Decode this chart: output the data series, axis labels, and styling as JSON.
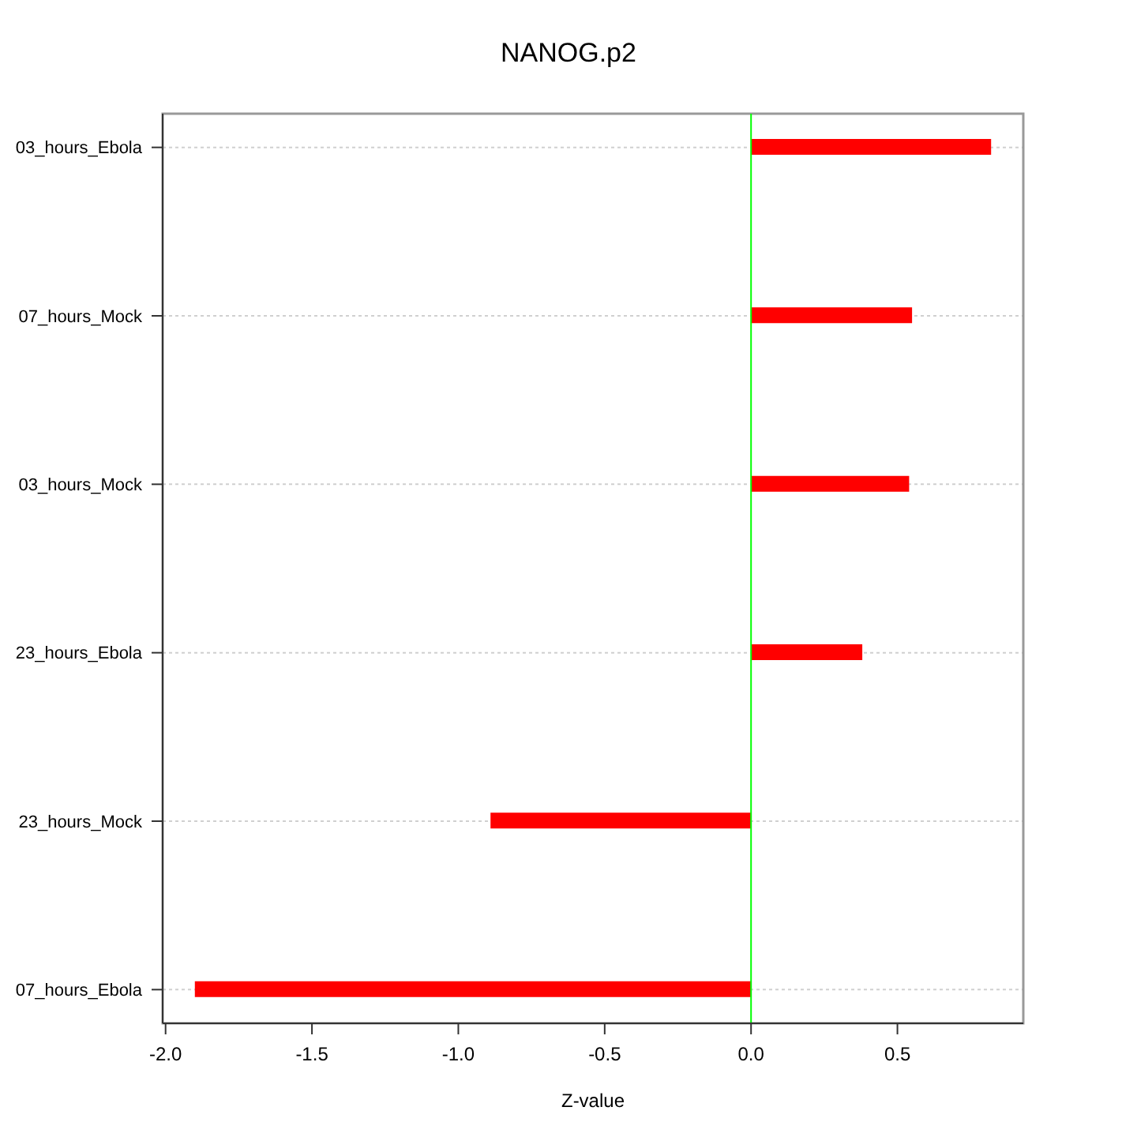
{
  "chart_data": {
    "type": "bar",
    "orientation": "horizontal",
    "title": "NANOG.p2",
    "xlabel": "Z-value",
    "categories": [
      "03_hours_Ebola",
      "07_hours_Mock",
      "03_hours_Mock",
      "23_hours_Ebola",
      "23_hours_Mock",
      "07_hours_Ebola"
    ],
    "values": [
      0.82,
      0.55,
      0.54,
      0.38,
      -0.89,
      -1.9
    ],
    "color": "#ff0000",
    "xlim": [
      -2.01,
      0.93
    ],
    "xticks": [
      {
        "value": -2,
        "label": "-2.0"
      },
      {
        "value": -1.5,
        "label": "-1.5"
      },
      {
        "value": -1,
        "label": "-1.0"
      },
      {
        "value": -0.5,
        "label": "-0.5"
      },
      {
        "value": 0,
        "label": "0.0"
      },
      {
        "value": 0.5,
        "label": "0.5"
      }
    ],
    "grid": "y",
    "ref_lines": [
      {
        "axis": "x",
        "value": 0,
        "color": "#00ff00"
      }
    ]
  }
}
